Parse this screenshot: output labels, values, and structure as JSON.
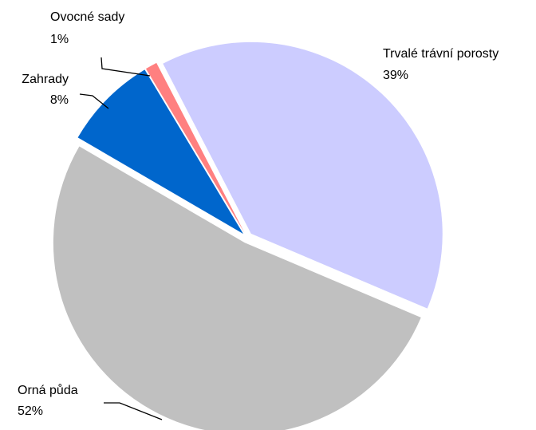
{
  "chart_data": {
    "type": "pie",
    "categories": [
      "Trvalé trávní porosty",
      "Orná půda",
      "Zahrady",
      "Ovocné sady"
    ],
    "values": [
      39,
      52,
      8,
      1
    ],
    "value_labels": [
      "39%",
      "52%",
      "8%",
      "1%"
    ],
    "colors": [
      "#ccccff",
      "#c0c0c0",
      "#0066cc",
      "#ff8080"
    ]
  }
}
